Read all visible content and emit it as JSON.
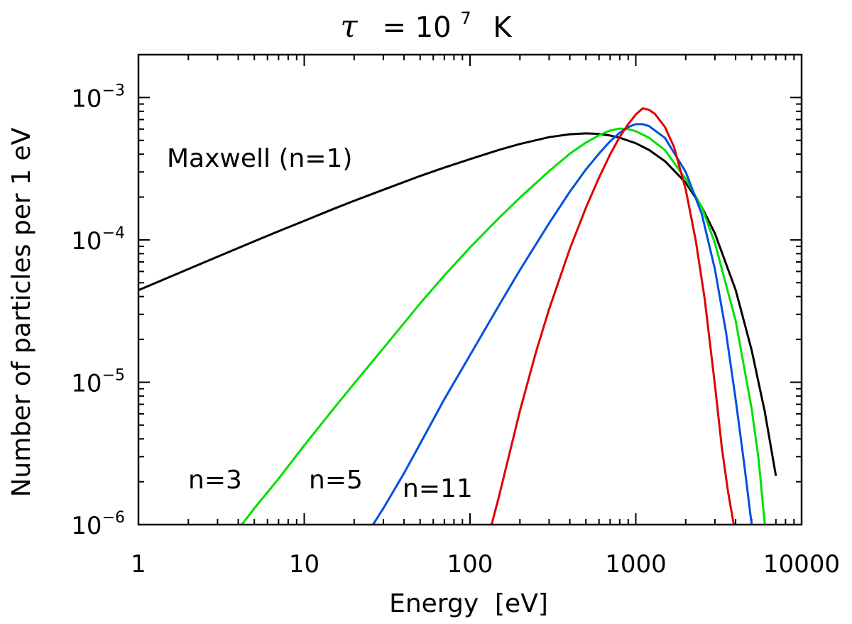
{
  "chart_data": {
    "type": "line",
    "scale": {
      "x": "log",
      "y": "log"
    },
    "title": {
      "prefix": "τ",
      "middle": "= 10",
      "exponent": "7",
      "suffix": "K"
    },
    "xlabel": "Energy  [eV]",
    "ylabel": "Number of particles per 1 eV",
    "xlim": [
      1,
      10000
    ],
    "ylim": [
      1e-06,
      0.002
    ],
    "x_ticks": [
      {
        "value": 1,
        "label": "1"
      },
      {
        "value": 10,
        "label": "10"
      },
      {
        "value": 100,
        "label": "100"
      },
      {
        "value": 1000,
        "label": "1000"
      },
      {
        "value": 10000,
        "label": "10000"
      }
    ],
    "y_ticks": [
      {
        "value": 1e-06,
        "base": "10",
        "exp": "−6"
      },
      {
        "value": 1e-05,
        "base": "10",
        "exp": "−5"
      },
      {
        "value": 0.0001,
        "base": "10",
        "exp": "−4"
      },
      {
        "value": 0.001,
        "base": "10",
        "exp": "−3"
      }
    ],
    "series": [
      {
        "name": "Maxwell (n=1)",
        "label": "Maxwell (n=1)",
        "color": "#000000",
        "x": [
          1,
          1.5,
          2,
          3,
          5,
          7,
          10,
          15,
          20,
          30,
          50,
          70,
          100,
          150,
          200,
          300,
          400,
          500,
          600,
          700,
          800,
          1000,
          1200,
          1500,
          2000,
          2500,
          3000,
          4000,
          5000,
          6000,
          7000
        ],
        "y": [
          4.43e-05,
          5.41e-05,
          6.24e-05,
          7.62e-05,
          9.78e-05,
          0.000115,
          0.000136,
          0.000165,
          0.000188,
          0.000225,
          0.000281,
          0.000322,
          0.000369,
          0.000429,
          0.000472,
          0.000527,
          0.000552,
          0.00056,
          0.000555,
          0.000541,
          0.000522,
          0.000477,
          0.000429,
          0.000357,
          0.000252,
          0.00017,
          0.000111,
          4.45e-05,
          1.68e-05,
          6.2e-06,
          2.2e-06
        ]
      },
      {
        "name": "n=3",
        "label": "n=3",
        "color": "#00e000",
        "x": [
          4.2,
          5,
          7,
          10,
          15,
          20,
          30,
          50,
          70,
          100,
          150,
          200,
          300,
          400,
          500,
          600,
          700,
          800,
          900,
          1000,
          1200,
          1500,
          2000,
          2500,
          3000,
          4000,
          5000,
          5500,
          6000
        ],
        "y": [
          1e-06,
          1.3e-06,
          2.1e-06,
          3.6e-06,
          6.5e-06,
          9.8e-06,
          1.73e-05,
          3.58e-05,
          5.62e-05,
          8.85e-05,
          0.000143,
          0.000198,
          0.000304,
          0.000403,
          0.000482,
          0.000544,
          0.000586,
          0.000605,
          0.0006,
          0.00058,
          0.000522,
          0.000427,
          0.000268,
          0.00017,
          9.5e-05,
          2.71e-05,
          6.5e-06,
          2.9e-06,
          1e-06
        ]
      },
      {
        "name": "n=5",
        "label": "n=5",
        "color": "#0050e0",
        "x": [
          26,
          30,
          40,
          50,
          70,
          100,
          150,
          200,
          300,
          400,
          500,
          600,
          700,
          800,
          900,
          1000,
          1100,
          1200,
          1500,
          2000,
          2500,
          3000,
          3500,
          4000,
          4500,
          5000
        ],
        "y": [
          1e-06,
          1.3e-06,
          2.3e-06,
          3.7e-06,
          7.6e-06,
          1.55e-05,
          3.49e-05,
          6.14e-05,
          0.000131,
          0.000218,
          0.000312,
          0.000404,
          0.000492,
          0.000566,
          0.00062,
          0.00065,
          0.00065,
          0.00063,
          0.00052,
          0.0003,
          0.000152,
          6.23e-05,
          2.25e-05,
          7.6e-06,
          2.7e-06,
          1e-06
        ]
      },
      {
        "name": "n=11",
        "label": "n=11",
        "color": "#e00000",
        "x": [
          135,
          150,
          200,
          250,
          300,
          400,
          500,
          600,
          700,
          800,
          900,
          1000,
          1100,
          1200,
          1300,
          1500,
          1700,
          2000,
          2300,
          2600,
          3000,
          3300,
          3600,
          3900
        ],
        "y": [
          1e-06,
          1.6e-06,
          6.3e-06,
          1.63e-05,
          3.26e-05,
          8.65e-05,
          0.000168,
          0.000274,
          0.000398,
          0.00053,
          0.00065,
          0.00076,
          0.00084,
          0.00082,
          0.00077,
          0.00062,
          0.00045,
          0.000226,
          9.85e-05,
          3.89e-05,
          9.6e-06,
          3.5e-06,
          1.7e-06,
          1e-06
        ]
      }
    ]
  }
}
